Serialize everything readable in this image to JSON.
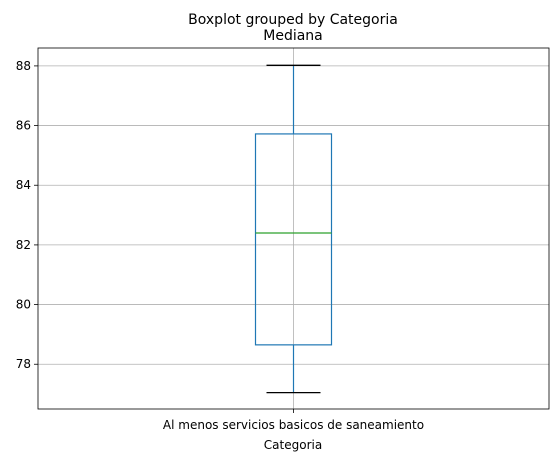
{
  "chart_data": {
    "type": "boxplot",
    "suptitle": "Boxplot grouped by Categoria",
    "title": "Mediana",
    "xlabel": "Categoria",
    "ylabel": "",
    "categories": [
      "Al menos servicios basicos de saneamiento"
    ],
    "boxes": [
      {
        "whisker_low": 77.05,
        "q1": 78.65,
        "median": 82.4,
        "q3": 85.72,
        "whisker_high": 88.02
      }
    ],
    "ylim": [
      76.5,
      88.6
    ],
    "yticks": [
      78,
      80,
      82,
      84,
      86,
      88
    ],
    "grid": true,
    "colors": {
      "box": "#1f77b4",
      "median": "#2ca02c",
      "whisker_cap": "#000000",
      "grid": "#b0b0b0"
    }
  }
}
